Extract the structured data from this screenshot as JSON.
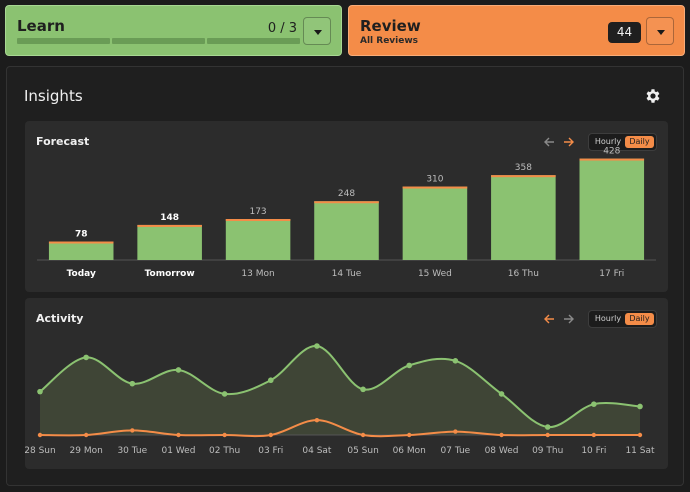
{
  "learn": {
    "title": "Learn",
    "count": "0 / 3",
    "progress_segments": 3,
    "progress_filled": 0
  },
  "review": {
    "title": "Review",
    "subtitle": "All Reviews",
    "count": "44"
  },
  "insights": {
    "title": "Insights"
  },
  "forecast": {
    "title": "Forecast",
    "toggle": {
      "hourly": "Hourly",
      "daily": "Daily",
      "selected": "Daily"
    }
  },
  "activity": {
    "title": "Activity",
    "toggle": {
      "hourly": "Hourly",
      "daily": "Daily",
      "selected": "Daily"
    }
  },
  "colors": {
    "green": "#8bc271",
    "orange": "#f48c48",
    "panel": "#2c2c2c"
  },
  "chart_data": [
    {
      "type": "bar",
      "name": "forecast",
      "categories": [
        "Today",
        "Tomorrow",
        "13 Mon",
        "14 Tue",
        "15 Wed",
        "16 Thu",
        "17 Fri"
      ],
      "bold_categories": [
        "Today",
        "Tomorrow"
      ],
      "values": [
        78,
        148,
        173,
        248,
        310,
        358,
        428
      ],
      "ylim": [
        0,
        460
      ]
    },
    {
      "type": "area",
      "name": "activity",
      "categories": [
        "28 Sun",
        "29 Mon",
        "30 Tue",
        "01 Wed",
        "02 Thu",
        "03 Fri",
        "04 Sat",
        "05 Sun",
        "06 Mon",
        "07 Tue",
        "08 Wed",
        "09 Thu",
        "10 Fri",
        "11 Sat"
      ],
      "series": [
        {
          "color": "#8bc271",
          "values": [
            38,
            68,
            45,
            57,
            36,
            48,
            78,
            40,
            61,
            65,
            36,
            7,
            27,
            25
          ]
        },
        {
          "color": "#f48c48",
          "values": [
            0,
            0,
            4,
            0,
            0,
            0,
            13,
            0,
            0,
            3,
            0,
            0,
            0,
            0
          ]
        }
      ],
      "ylim": [
        0,
        85
      ]
    }
  ]
}
